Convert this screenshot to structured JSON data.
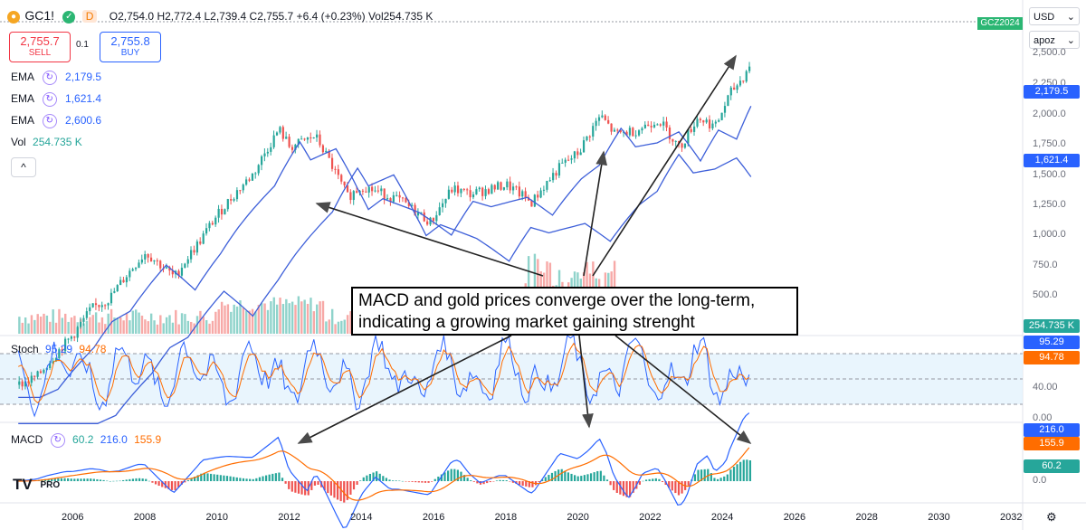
{
  "header": {
    "symbol": "GC1!",
    "ohlc": "O2,754.0 H2,772.4 L2,739.4 C2,755.7 +6.4 (+0.23%) Vol254.735 K",
    "sell_price": "2,755.7",
    "sell_label": "SELL",
    "spread": "0.1",
    "buy_price": "2,755.8",
    "buy_label": "BUY",
    "d_badge": "D"
  },
  "indicators": [
    {
      "name": "EMA",
      "value": "2,179.5"
    },
    {
      "name": "EMA",
      "value": "1,621.4"
    },
    {
      "name": "EMA",
      "value": "2,600.6"
    }
  ],
  "volume": {
    "label": "Vol",
    "value": "254.735 K"
  },
  "stoch": {
    "label": "Stoch",
    "k": "95.29",
    "d": "94.78"
  },
  "macd": {
    "label": "MACD",
    "hist": "60.2",
    "macd": "216.0",
    "signal": "155.9"
  },
  "right_panel": {
    "currency": "USD",
    "mode": "apoz",
    "contract": "GCZ2024"
  },
  "price_axis": [
    "2,500.0",
    "2,250.0",
    "2,000.0",
    "1,750.0",
    "1,500.0",
    "1,250.0",
    "1,000.0",
    "750.0",
    "500.0"
  ],
  "price_tags": {
    "close": "2,179.5",
    "ema_mid": "1,621.4",
    "volume": "254.735 K"
  },
  "stoch_axis": [
    "40.00",
    "0.00"
  ],
  "stoch_tags": {
    "k": "95.29",
    "d": "94.78"
  },
  "macd_axis": [
    "0.0"
  ],
  "macd_tags": {
    "macd": "216.0",
    "signal": "155.9",
    "hist": "60.2"
  },
  "time_axis": [
    "2006",
    "2008",
    "2010",
    "2012",
    "2014",
    "2016",
    "2018",
    "2020",
    "2022",
    "2024",
    "2026",
    "2028",
    "2030",
    "2032"
  ],
  "annotation": {
    "line1": "MACD and gold prices converge over the long-term,",
    "line2": "indicating a growing market gaining strenght"
  },
  "logo_text": "PRO",
  "colors": {
    "up": "#26a69a",
    "down": "#ef5350",
    "blue": "#2962ff",
    "orange": "#ff6d00",
    "ema": "#3d5fd9"
  },
  "chart_data": {
    "type": "line",
    "title": "GC1!",
    "x": [
      2004.5,
      2005,
      2006,
      2006.5,
      2007,
      2008,
      2008.8,
      2009.5,
      2010,
      2011,
      2011.7,
      2012,
      2012.7,
      2013.3,
      2013.6,
      2014,
      2015,
      2015.9,
      2016.5,
      2017,
      2018,
      2018.7,
      2019.5,
      2020,
      2020.6,
      2021,
      2021.6,
      2022.2,
      2022.8,
      2023.3,
      2023.8,
      2024.2,
      2024.6,
      2024.8
    ],
    "series": [
      {
        "name": "GC1!",
        "values": [
          420,
          440,
          560,
          650,
          690,
          900,
          780,
          960,
          1120,
          1420,
          1830,
          1650,
          1760,
          1400,
          1240,
          1320,
          1220,
          1070,
          1300,
          1260,
          1330,
          1200,
          1480,
          1600,
          1980,
          1780,
          1820,
          1940,
          1640,
          1960,
          1860,
          2250,
          2500,
          2755.7
        ]
      }
    ],
    "ylim": [
      300,
      2800
    ],
    "ylabel": "",
    "xlabel": "",
    "log_scale": true
  }
}
